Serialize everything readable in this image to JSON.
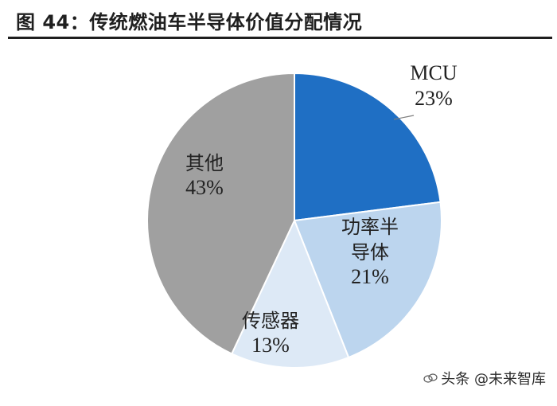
{
  "header": {
    "title": "图 44：传统燃油车半导体价值分配情况"
  },
  "watermark": {
    "text": "头条 @未来智库"
  },
  "colors": {
    "MCU": "#1f6fc4",
    "功率半导体": "#bcd5ee",
    "传感器": "#dde9f6",
    "其他": "#a0a0a0",
    "label_line": "#7f7f7f"
  },
  "chart_data": {
    "type": "pie",
    "title": "",
    "categories": [
      "MCU",
      "功率半导体",
      "传感器",
      "其他"
    ],
    "values": [
      23,
      21,
      13,
      43
    ],
    "unit": "%",
    "start_angle_deg": 0,
    "direction": "clockwise",
    "labels": [
      {
        "name_lines": [
          "MCU"
        ],
        "percent": "23%"
      },
      {
        "name_lines": [
          "功率半",
          "导体"
        ],
        "percent": "21%"
      },
      {
        "name_lines": [
          "传感器"
        ],
        "percent": "13%"
      },
      {
        "name_lines": [
          "其他"
        ],
        "percent": "43%"
      }
    ]
  }
}
